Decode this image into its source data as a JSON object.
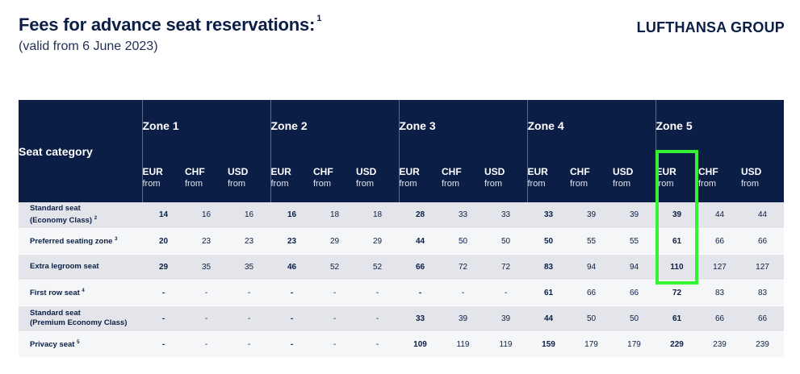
{
  "header": {
    "title": "Fees for advance seat reservations:",
    "title_footnote": "1",
    "subtitle": "(valid from 6 June 2023)",
    "brand": "LUFTHANSA GROUP"
  },
  "table": {
    "category_header": "Seat category",
    "zones": [
      "Zone 1",
      "Zone 2",
      "Zone 3",
      "Zone 4",
      "Zone 5"
    ],
    "currencies": [
      "EUR",
      "CHF",
      "USD"
    ],
    "from_label": "from",
    "rows": [
      {
        "line1": "Standard seat",
        "line2": "(Economy Class)",
        "note": "2",
        "values": [
          "14",
          "16",
          "16",
          "16",
          "18",
          "18",
          "28",
          "33",
          "33",
          "33",
          "39",
          "39",
          "39",
          "44",
          "44"
        ]
      },
      {
        "line1": "Preferred seating zone",
        "line2": "",
        "note": "3",
        "values": [
          "20",
          "23",
          "23",
          "23",
          "29",
          "29",
          "44",
          "50",
          "50",
          "50",
          "55",
          "55",
          "61",
          "66",
          "66"
        ]
      },
      {
        "line1": "Extra legroom seat",
        "line2": "",
        "note": "",
        "values": [
          "29",
          "35",
          "35",
          "46",
          "52",
          "52",
          "66",
          "72",
          "72",
          "83",
          "94",
          "94",
          "110",
          "127",
          "127"
        ]
      },
      {
        "line1": "First row seat",
        "line2": "",
        "note": "4",
        "values": [
          "-",
          "-",
          "-",
          "-",
          "-",
          "-",
          "-",
          "-",
          "-",
          "61",
          "66",
          "66",
          "72",
          "83",
          "83"
        ]
      },
      {
        "line1": "Standard seat",
        "line2": "(Premium Economy Class)",
        "note": "",
        "values": [
          "-",
          "-",
          "-",
          "-",
          "-",
          "-",
          "33",
          "39",
          "39",
          "44",
          "50",
          "50",
          "61",
          "66",
          "66"
        ]
      },
      {
        "line1": "Privacy seat",
        "line2": "",
        "note": "5",
        "values": [
          "-",
          "-",
          "-",
          "-",
          "-",
          "-",
          "109",
          "119",
          "119",
          "159",
          "179",
          "179",
          "229",
          "239",
          "239"
        ]
      }
    ]
  },
  "highlight": {
    "color": "#35f235",
    "target": "Zone 5 EUR rows 1-3"
  }
}
